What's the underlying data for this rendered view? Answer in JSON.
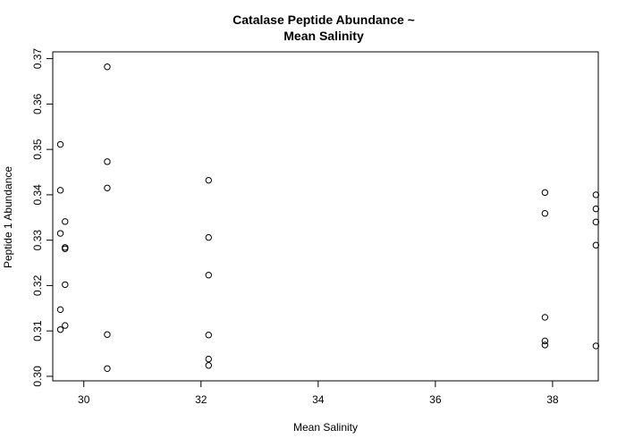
{
  "chart_data": {
    "type": "scatter",
    "title_lines": [
      "Catalase Peptide Abundance ~",
      "Mean Salinity"
    ],
    "xlabel": "Mean Salinity",
    "ylabel": "Peptide 1 Abundance",
    "xlim": [
      29.47,
      38.78
    ],
    "ylim": [
      0.299,
      0.3715
    ],
    "x_ticks": [
      30,
      32,
      34,
      36,
      38
    ],
    "y_ticks": [
      0.3,
      0.31,
      0.32,
      0.33,
      0.34,
      0.35,
      0.36,
      0.37
    ],
    "x_tick_labels": [
      "30",
      "32",
      "34",
      "36",
      "38"
    ],
    "y_tick_labels": [
      "0.30",
      "0.31",
      "0.32",
      "0.33",
      "0.34",
      "0.35",
      "0.36",
      "0.37"
    ],
    "grid": false,
    "marker": "open-circle",
    "points": [
      {
        "x": 29.6,
        "y": 0.3511
      },
      {
        "x": 29.6,
        "y": 0.341
      },
      {
        "x": 29.6,
        "y": 0.3315
      },
      {
        "x": 29.6,
        "y": 0.3147
      },
      {
        "x": 29.6,
        "y": 0.3103
      },
      {
        "x": 29.68,
        "y": 0.3341
      },
      {
        "x": 29.68,
        "y": 0.3284
      },
      {
        "x": 29.68,
        "y": 0.3281
      },
      {
        "x": 29.68,
        "y": 0.3202
      },
      {
        "x": 29.68,
        "y": 0.3112
      },
      {
        "x": 30.4,
        "y": 0.3682
      },
      {
        "x": 30.4,
        "y": 0.3473
      },
      {
        "x": 30.4,
        "y": 0.3415
      },
      {
        "x": 30.4,
        "y": 0.3092
      },
      {
        "x": 30.4,
        "y": 0.3017
      },
      {
        "x": 32.13,
        "y": 0.3432
      },
      {
        "x": 32.13,
        "y": 0.3306
      },
      {
        "x": 32.13,
        "y": 0.3223
      },
      {
        "x": 32.13,
        "y": 0.3091
      },
      {
        "x": 32.13,
        "y": 0.3038
      },
      {
        "x": 32.13,
        "y": 0.3024
      },
      {
        "x": 37.87,
        "y": 0.3405
      },
      {
        "x": 37.87,
        "y": 0.3359
      },
      {
        "x": 37.87,
        "y": 0.313
      },
      {
        "x": 37.87,
        "y": 0.3078
      },
      {
        "x": 37.87,
        "y": 0.3069
      },
      {
        "x": 38.74,
        "y": 0.34
      },
      {
        "x": 38.74,
        "y": 0.3369
      },
      {
        "x": 38.74,
        "y": 0.334
      },
      {
        "x": 38.74,
        "y": 0.3289
      },
      {
        "x": 38.74,
        "y": 0.3067
      }
    ]
  }
}
